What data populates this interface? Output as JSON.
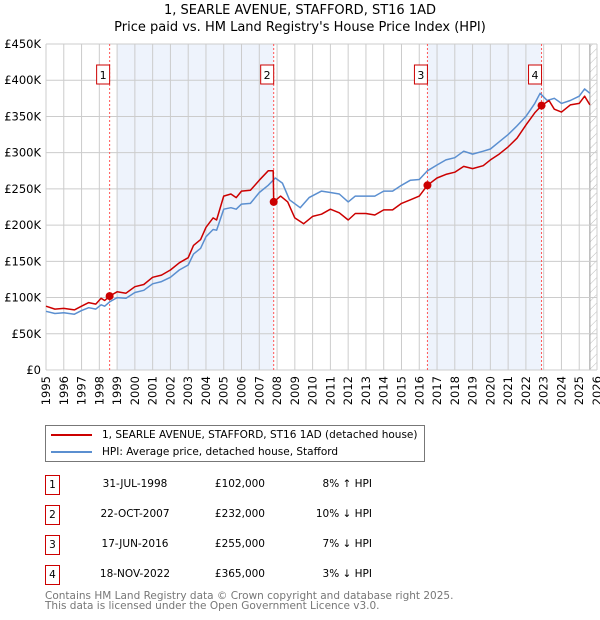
{
  "chart_data": {
    "type": "line",
    "title": "1, SEARLE AVENUE, STAFFORD, ST16 1AD",
    "subtitle": "Price paid vs. HM Land Registry's House Price Index (HPI)",
    "xlabel": "",
    "ylabel": "",
    "xlim": [
      1995,
      2026
    ],
    "ylim": [
      0,
      450000
    ],
    "grid": true,
    "y_ticks": [
      0,
      50000,
      100000,
      150000,
      200000,
      250000,
      300000,
      350000,
      400000,
      450000
    ],
    "y_tick_labels": [
      "£0",
      "£50K",
      "£100K",
      "£150K",
      "£200K",
      "£250K",
      "£300K",
      "£350K",
      "£400K",
      "£450K"
    ],
    "x_tick_labels": [
      "1995",
      "1996",
      "1997",
      "1998",
      "1999",
      "2000",
      "2001",
      "2002",
      "2003",
      "2004",
      "2005",
      "2006",
      "2007",
      "2008",
      "2009",
      "2010",
      "2011",
      "2012",
      "2013",
      "2014",
      "2015",
      "2016",
      "2017",
      "2018",
      "2019",
      "2020",
      "2021",
      "2022",
      "2023",
      "2024",
      "2025",
      "2026"
    ],
    "forecast_from": 2025.6,
    "series": [
      {
        "name": "1, SEARLE AVENUE, STAFFORD, ST16 1AD (detached house)",
        "color": "#cc0000",
        "points": [
          [
            1995,
            88000
          ],
          [
            1995.5,
            84000
          ],
          [
            1996,
            85000
          ],
          [
            1996.6,
            83000
          ],
          [
            1997,
            88000
          ],
          [
            1997.4,
            93000
          ],
          [
            1997.8,
            91000
          ],
          [
            1998.1,
            99000
          ],
          [
            1998.3,
            96000
          ],
          [
            1998.58,
            102000
          ],
          [
            1999,
            108000
          ],
          [
            1999.5,
            106000
          ],
          [
            2000,
            115000
          ],
          [
            2000.5,
            118000
          ],
          [
            2001,
            128000
          ],
          [
            2001.5,
            131000
          ],
          [
            2002,
            138000
          ],
          [
            2002.5,
            148000
          ],
          [
            2003,
            155000
          ],
          [
            2003.3,
            172000
          ],
          [
            2003.7,
            180000
          ],
          [
            2004,
            197000
          ],
          [
            2004.4,
            210000
          ],
          [
            2004.6,
            207000
          ],
          [
            2005,
            240000
          ],
          [
            2005.4,
            243000
          ],
          [
            2005.7,
            238000
          ],
          [
            2006,
            247000
          ],
          [
            2006.5,
            248000
          ],
          [
            2007,
            262000
          ],
          [
            2007.5,
            275000
          ],
          [
            2007.78,
            275000
          ],
          [
            2007.81,
            232000
          ],
          [
            2008.2,
            240000
          ],
          [
            2008.6,
            232000
          ],
          [
            2009,
            210000
          ],
          [
            2009.5,
            202000
          ],
          [
            2010,
            212000
          ],
          [
            2010.5,
            215000
          ],
          [
            2011,
            222000
          ],
          [
            2011.5,
            217000
          ],
          [
            2012,
            207000
          ],
          [
            2012.4,
            216000
          ],
          [
            2013,
            216000
          ],
          [
            2013.5,
            214000
          ],
          [
            2014,
            221000
          ],
          [
            2014.5,
            221000
          ],
          [
            2015,
            230000
          ],
          [
            2015.5,
            235000
          ],
          [
            2016,
            240000
          ],
          [
            2016.46,
            255000
          ],
          [
            2017,
            265000
          ],
          [
            2017.5,
            270000
          ],
          [
            2018,
            273000
          ],
          [
            2018.5,
            281000
          ],
          [
            2019,
            278000
          ],
          [
            2019.6,
            282000
          ],
          [
            2020,
            290000
          ],
          [
            2020.5,
            298000
          ],
          [
            2021,
            308000
          ],
          [
            2021.5,
            320000
          ],
          [
            2022,
            338000
          ],
          [
            2022.5,
            355000
          ],
          [
            2022.88,
            365000
          ],
          [
            2023.3,
            372000
          ],
          [
            2023.6,
            360000
          ],
          [
            2024,
            356000
          ],
          [
            2024.5,
            366000
          ],
          [
            2025,
            368000
          ],
          [
            2025.3,
            378000
          ],
          [
            2025.6,
            366000
          ]
        ]
      },
      {
        "name": "HPI: Average price, detached house, Stafford",
        "color": "#5b8fd0",
        "points": [
          [
            1995,
            81000
          ],
          [
            1995.5,
            78000
          ],
          [
            1996,
            79000
          ],
          [
            1996.6,
            77000
          ],
          [
            1997,
            82000
          ],
          [
            1997.4,
            86000
          ],
          [
            1997.8,
            84000
          ],
          [
            1998.1,
            90000
          ],
          [
            1998.3,
            88000
          ],
          [
            1998.58,
            94000
          ],
          [
            1999,
            100000
          ],
          [
            1999.5,
            99000
          ],
          [
            2000,
            107000
          ],
          [
            2000.5,
            110000
          ],
          [
            2001,
            119000
          ],
          [
            2001.5,
            122000
          ],
          [
            2002,
            128000
          ],
          [
            2002.5,
            138000
          ],
          [
            2003,
            145000
          ],
          [
            2003.3,
            160000
          ],
          [
            2003.7,
            168000
          ],
          [
            2004,
            184000
          ],
          [
            2004.4,
            194000
          ],
          [
            2004.6,
            193000
          ],
          [
            2005,
            222000
          ],
          [
            2005.4,
            224000
          ],
          [
            2005.7,
            222000
          ],
          [
            2006,
            229000
          ],
          [
            2006.5,
            230000
          ],
          [
            2007,
            245000
          ],
          [
            2007.5,
            255000
          ],
          [
            2007.9,
            265000
          ],
          [
            2008.3,
            258000
          ],
          [
            2008.7,
            235000
          ],
          [
            2009.3,
            224000
          ],
          [
            2009.8,
            238000
          ],
          [
            2010.5,
            247000
          ],
          [
            2011,
            245000
          ],
          [
            2011.5,
            243000
          ],
          [
            2012,
            232000
          ],
          [
            2012.4,
            240000
          ],
          [
            2013,
            240000
          ],
          [
            2013.5,
            240000
          ],
          [
            2014,
            247000
          ],
          [
            2014.5,
            247000
          ],
          [
            2015,
            255000
          ],
          [
            2015.5,
            262000
          ],
          [
            2016,
            263000
          ],
          [
            2016.46,
            275000
          ],
          [
            2017,
            283000
          ],
          [
            2017.5,
            290000
          ],
          [
            2018,
            293000
          ],
          [
            2018.5,
            302000
          ],
          [
            2019,
            298000
          ],
          [
            2019.6,
            302000
          ],
          [
            2020,
            305000
          ],
          [
            2020.5,
            315000
          ],
          [
            2021,
            325000
          ],
          [
            2021.5,
            337000
          ],
          [
            2022,
            350000
          ],
          [
            2022.5,
            368000
          ],
          [
            2022.8,
            382000
          ],
          [
            2023.2,
            372000
          ],
          [
            2023.6,
            375000
          ],
          [
            2024,
            368000
          ],
          [
            2024.5,
            372000
          ],
          [
            2025,
            378000
          ],
          [
            2025.3,
            388000
          ],
          [
            2025.6,
            382000
          ]
        ]
      }
    ],
    "sales": [
      {
        "label": "1",
        "x": 1998.58,
        "price": 102000
      },
      {
        "label": "2",
        "x": 2007.81,
        "price": 232000
      },
      {
        "label": "3",
        "x": 2016.46,
        "price": 255000
      },
      {
        "label": "4",
        "x": 2022.88,
        "price": 365000
      }
    ],
    "shaded_ranges": [
      [
        1999,
        2007.81
      ],
      [
        2016.46,
        2022.88
      ]
    ]
  },
  "header": {
    "title": "1, SEARLE AVENUE, STAFFORD, ST16 1AD",
    "subtitle": "Price paid vs. HM Land Registry's House Price Index (HPI)"
  },
  "legend": {
    "items": [
      {
        "label": "1, SEARLE AVENUE, STAFFORD, ST16 1AD (detached house)",
        "color": "#cc0000"
      },
      {
        "label": "HPI: Average price, detached house, Stafford",
        "color": "#5b8fd0"
      }
    ]
  },
  "table": [
    {
      "num": "1",
      "date": "31-JUL-1998",
      "price": "£102,000",
      "hpi": "8% ↑ HPI"
    },
    {
      "num": "2",
      "date": "22-OCT-2007",
      "price": "£232,000",
      "hpi": "10% ↓ HPI"
    },
    {
      "num": "3",
      "date": "17-JUN-2016",
      "price": "£255,000",
      "hpi": "7% ↓ HPI"
    },
    {
      "num": "4",
      "date": "18-NOV-2022",
      "price": "£365,000",
      "hpi": "3% ↓ HPI"
    }
  ],
  "footer": {
    "line1": "Contains HM Land Registry data © Crown copyright and database right 2025.",
    "line2": "This data is licensed under the Open Government Licence v3.0."
  }
}
